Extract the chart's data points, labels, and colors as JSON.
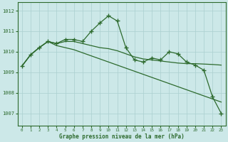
{
  "background_color": "#cce8e8",
  "grid_color": "#aacfcf",
  "line_color": "#2d6a2d",
  "title": "Graphe pression niveau de la mer (hPa)",
  "ylabel_values": [
    1007,
    1008,
    1009,
    1010,
    1011,
    1012
  ],
  "xlim": [
    -0.5,
    23.5
  ],
  "ylim": [
    1006.4,
    1012.4
  ],
  "series_detailed": [
    1009.3,
    1009.85,
    1010.2,
    1010.5,
    1010.4,
    1010.6,
    1010.6,
    1010.5,
    1011.0,
    1011.4,
    1011.75,
    1011.5,
    1010.2,
    1009.6,
    1009.5,
    1009.7,
    1009.6,
    1010.0,
    1009.9,
    1009.5,
    1009.35,
    1009.1,
    1007.8,
    1007.0
  ],
  "series_smooth1": [
    1009.3,
    1009.85,
    1010.2,
    1010.5,
    1010.4,
    1010.5,
    1010.5,
    1010.4,
    1010.3,
    1010.2,
    1010.15,
    1010.05,
    1009.9,
    1009.75,
    1009.65,
    1009.6,
    1009.55,
    1009.5,
    1009.45,
    1009.42,
    1009.42,
    1009.4,
    1009.38,
    1009.35
  ],
  "series_diagonal": [
    1009.3,
    1009.85,
    1010.2,
    1010.5,
    1010.3,
    1010.2,
    1010.1,
    1009.95,
    1009.8,
    1009.65,
    1009.5,
    1009.35,
    1009.2,
    1009.05,
    1008.9,
    1008.75,
    1008.6,
    1008.45,
    1008.3,
    1008.15,
    1008.0,
    1007.85,
    1007.7,
    1007.55
  ]
}
